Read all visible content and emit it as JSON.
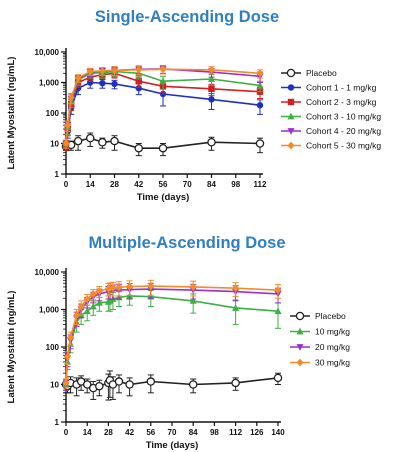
{
  "colors": {
    "title": "#2f7fc1",
    "Placebo": "#222222",
    "Cohort 1 - 1 mg/kg": "#1f2fbf",
    "Cohort 2 - 3 mg/kg": "#d22020",
    "Cohort 3 - 10 mg/kg": "#3cb043",
    "Cohort 4 - 20 mg/kg": "#9b2fd0",
    "Cohort 5 - 30 mg/kg": "#f28c28",
    "10 mg/kg": "#3cb043",
    "20 mg/kg": "#9b2fd0",
    "30 mg/kg": "#f28c28"
  },
  "chart_data": [
    {
      "type": "line",
      "title": "Single-Ascending Dose",
      "xlabel": "Time (days)",
      "ylabel": "Latent Myostatin (ng/mL)",
      "yscale": "log",
      "xlim": [
        0,
        112
      ],
      "ylim": [
        1,
        10000
      ],
      "xticks": [
        0,
        14,
        28,
        42,
        56,
        70,
        84,
        98,
        112
      ],
      "yticks": [
        1,
        10,
        100,
        1000,
        10000
      ],
      "ytick_labels": [
        "1",
        "10",
        "100",
        "1,000",
        "10,000"
      ],
      "legend_position": "right",
      "series": [
        {
          "name": "Placebo",
          "marker": "open-circle",
          "x": [
            0,
            1,
            3,
            7,
            14,
            21,
            28,
            42,
            56,
            84,
            112
          ],
          "y": [
            8,
            9,
            9,
            12,
            15,
            11,
            12,
            7,
            7,
            11,
            10
          ],
          "err": [
            2,
            3,
            3,
            6,
            7,
            4,
            6,
            3,
            3,
            5,
            5
          ]
        },
        {
          "name": "Cohort 1 - 1 mg/kg",
          "marker": "circle",
          "x": [
            0,
            1,
            3,
            7,
            14,
            21,
            28,
            42,
            56,
            84,
            112
          ],
          "y": [
            9,
            25,
            150,
            650,
            1000,
            950,
            900,
            650,
            420,
            280,
            180
          ],
          "err": [
            3,
            10,
            60,
            250,
            350,
            300,
            280,
            250,
            250,
            150,
            90
          ]
        },
        {
          "name": "Cohort 2 - 3 mg/kg",
          "marker": "square",
          "x": [
            0,
            1,
            3,
            7,
            14,
            21,
            28,
            42,
            56,
            84,
            112
          ],
          "y": [
            9,
            30,
            200,
            1000,
            1500,
            1800,
            2000,
            1100,
            750,
            620,
            500
          ],
          "err": [
            3,
            12,
            80,
            300,
            400,
            500,
            600,
            400,
            300,
            250,
            200
          ]
        },
        {
          "name": "Cohort 3 - 10 mg/kg",
          "marker": "triangle",
          "x": [
            0,
            1,
            3,
            7,
            14,
            21,
            28,
            42,
            56,
            84,
            112
          ],
          "y": [
            10,
            35,
            250,
            1200,
            2000,
            2100,
            2300,
            2000,
            1100,
            1300,
            800
          ],
          "err": [
            3,
            15,
            100,
            400,
            600,
            700,
            800,
            700,
            500,
            500,
            300
          ]
        },
        {
          "name": "Cohort 4 - 20 mg/kg",
          "marker": "triangle-down",
          "x": [
            0,
            1,
            3,
            7,
            14,
            21,
            28,
            42,
            56,
            84,
            112
          ],
          "y": [
            10,
            40,
            300,
            1300,
            2200,
            2400,
            2500,
            2700,
            2800,
            2200,
            1600
          ],
          "err": [
            3,
            15,
            120,
            400,
            600,
            700,
            800,
            800,
            800,
            700,
            600
          ]
        },
        {
          "name": "Cohort 5 - 30 mg/kg",
          "marker": "diamond",
          "x": [
            0,
            1,
            3,
            7,
            14,
            21,
            28,
            42,
            56,
            84,
            112
          ],
          "y": [
            10,
            40,
            320,
            1400,
            2300,
            2400,
            2500,
            2600,
            2700,
            2600,
            2000
          ],
          "err": [
            3,
            15,
            120,
            400,
            600,
            700,
            800,
            800,
            800,
            700,
            600
          ]
        }
      ]
    },
    {
      "type": "line",
      "title": "Multiple-Ascending Dose",
      "xlabel": "Time (days)",
      "ylabel": "Latent Myostatin (ng/mL)",
      "yscale": "log",
      "xlim": [
        0,
        140
      ],
      "ylim": [
        1,
        10000
      ],
      "xticks": [
        0,
        14,
        28,
        42,
        56,
        70,
        84,
        98,
        112,
        126,
        140
      ],
      "yticks": [
        1,
        10,
        100,
        1000,
        10000
      ],
      "ytick_labels": [
        "1",
        "10",
        "100",
        "1,000",
        "10,000"
      ],
      "legend_position": "right",
      "series": [
        {
          "name": "Placebo",
          "marker": "open-circle",
          "x": [
            0,
            1,
            3,
            7,
            10,
            14,
            18,
            22,
            28,
            29,
            31,
            35,
            42,
            56,
            84,
            112,
            140
          ],
          "y": [
            10,
            9,
            11,
            10,
            12,
            10,
            8,
            9,
            11,
            13,
            10,
            12,
            10,
            12,
            10,
            11,
            15
          ],
          "err": [
            4,
            3,
            5,
            5,
            5,
            4,
            4,
            4,
            8,
            10,
            6,
            6,
            5,
            6,
            4,
            4,
            5
          ]
        },
        {
          "name": "10 mg/kg",
          "marker": "triangle",
          "x": [
            0,
            1,
            3,
            7,
            10,
            14,
            18,
            22,
            28,
            29,
            31,
            35,
            42,
            56,
            84,
            112,
            140
          ],
          "y": [
            10,
            40,
            120,
            450,
            700,
            900,
            1200,
            1500,
            1600,
            1700,
            1900,
            2100,
            2300,
            2200,
            1700,
            1100,
            900
          ],
          "err": [
            3,
            15,
            50,
            200,
            300,
            400,
            500,
            600,
            700,
            800,
            900,
            900,
            1000,
            1000,
            900,
            700,
            600
          ]
        },
        {
          "name": "20 mg/kg",
          "marker": "triangle-down",
          "x": [
            0,
            1,
            3,
            7,
            10,
            14,
            18,
            22,
            28,
            29,
            31,
            35,
            42,
            56,
            84,
            112,
            140
          ],
          "y": [
            10,
            50,
            150,
            600,
            1000,
            1600,
            2200,
            2600,
            3000,
            3100,
            3200,
            3300,
            3400,
            3500,
            3300,
            3000,
            2600
          ],
          "err": [
            3,
            20,
            60,
            250,
            400,
            500,
            700,
            900,
            1100,
            1200,
            1300,
            1400,
            1500,
            1500,
            1400,
            1300,
            1100
          ]
        },
        {
          "name": "30 mg/kg",
          "marker": "diamond",
          "x": [
            0,
            1,
            3,
            7,
            10,
            14,
            18,
            22,
            28,
            29,
            31,
            35,
            42,
            56,
            84,
            112,
            140
          ],
          "y": [
            11,
            55,
            180,
            700,
            1200,
            1900,
            2600,
            3100,
            3600,
            3700,
            3800,
            3900,
            4100,
            4200,
            4000,
            3700,
            3300
          ],
          "err": [
            3,
            20,
            70,
            300,
            500,
            600,
            800,
            1000,
            1300,
            1400,
            1500,
            1600,
            1700,
            1800,
            1700,
            1500,
            1300
          ]
        }
      ]
    }
  ]
}
